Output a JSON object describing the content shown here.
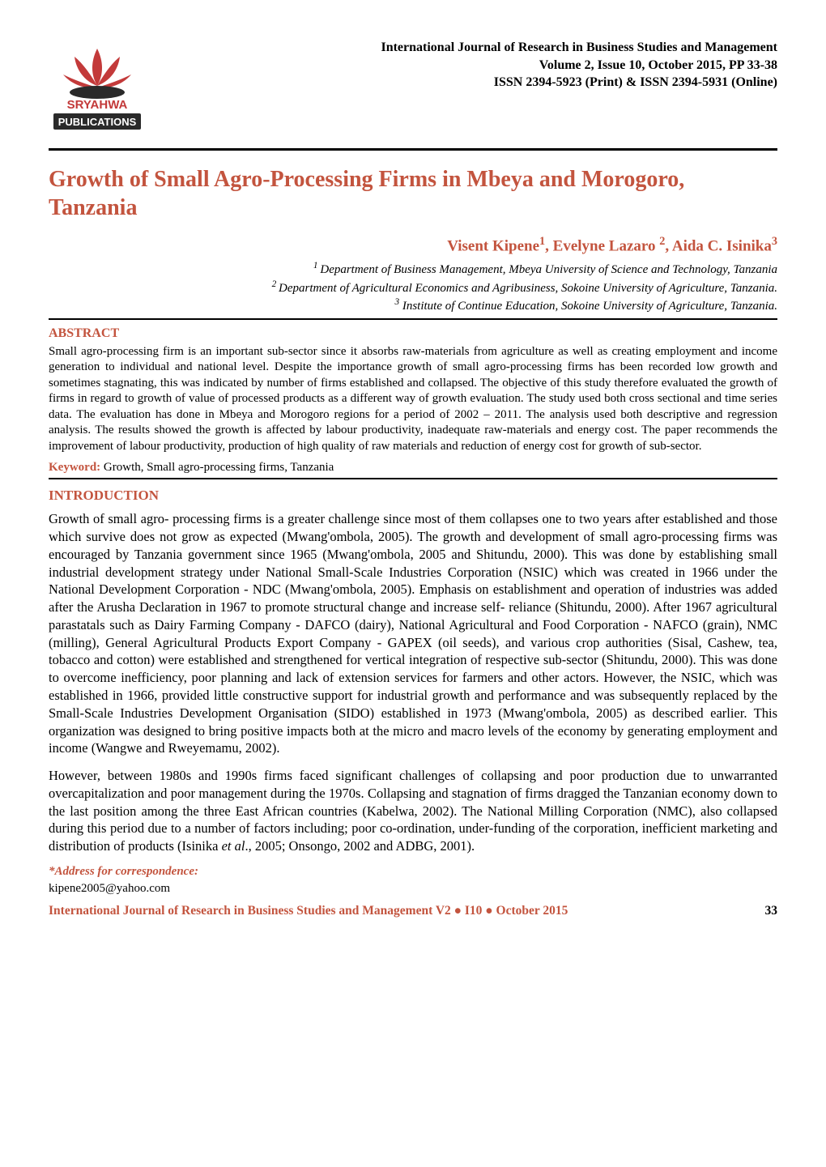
{
  "colors": {
    "accent": "#c3543e",
    "logo_red": "#c33a3a",
    "logo_dark": "#2a2a2a",
    "text": "#000000",
    "bg": "#ffffff"
  },
  "header": {
    "journal_name": "International Journal of Research in Business Studies and Management",
    "volume_line": "Volume 2, Issue 10, October 2015, PP 33-38",
    "issn_line": "ISSN 2394-5923 (Print) & ISSN 2394-5931 (Online)",
    "logo": {
      "top_text": "SRYAHWA",
      "bottom_text": "PUBLICATIONS"
    }
  },
  "article": {
    "title": "Growth of Small Agro-Processing Firms in Mbeya and Morogoro, Tanzania",
    "authors_html": "Visent Kipene<sup>1</sup>, Evelyne Lazaro <sup>2</sup>, Aida C. Isinika<sup>3</sup>",
    "affiliations": [
      "<sup>1 </sup>Department of Business Management, Mbeya University of Science and Technology, Tanzania",
      "<sup>2 </sup>Department of Agricultural Economics and Agribusiness, Sokoine University of Agriculture, Tanzania.",
      "<sup>3</sup>  Institute of Continue Education, Sokoine University of Agriculture, Tanzania."
    ]
  },
  "abstract": {
    "label": "ABSTRACT",
    "text": "Small agro-processing firm is an important sub-sector since it absorbs raw-materials from agriculture as well as creating employment and income generation to individual and national level. Despite the importance growth of small agro-processing firms has been recorded low growth and sometimes stagnating, this was indicated by number of firms established and collapsed. The objective of this study therefore evaluated the growth of firms in regard to growth of value of processed products as a different way of growth evaluation. The study used both cross sectional and time series data. The evaluation has done in Mbeya and Morogoro regions for a period of 2002 – 2011. The analysis used both descriptive and regression analysis. The results showed the growth is affected by labour productivity, inadequate raw-materials and energy cost. The paper recommends the improvement of labour productivity, production of high quality of raw materials and reduction of energy cost for growth of sub-sector."
  },
  "keywords": {
    "label": "Keyword:",
    "text": " Growth, Small agro-processing firms, Tanzania"
  },
  "introduction": {
    "label": "INTRODUCTION",
    "paragraphs": [
      "Growth of small agro- processing firms is a greater challenge since most of them collapses one to two years after established and those which survive does not grow as expected (Mwang'ombola, 2005). The growth and development of small agro-processing firms was encouraged by Tanzania government since 1965 (Mwang'ombola, 2005 and Shitundu, 2000). This was done by establishing small industrial development strategy under National Small-Scale Industries Corporation (NSIC) which was created in 1966 under the National Development Corporation - NDC (Mwang'ombola, 2005). Emphasis on establishment and operation of industries was added after the Arusha Declaration in 1967 to promote structural change and increase self- reliance (Shitundu, 2000). After 1967 agricultural parastatals such as Dairy Farming Company - DAFCO (dairy), National Agricultural and Food Corporation - NAFCO (grain), NMC (milling), General Agricultural Products Export Company - GAPEX (oil seeds), and various crop authorities (Sisal, Cashew, tea, tobacco and cotton) were established and strengthened for vertical integration of respective sub-sector (Shitundu, 2000).  This was done to overcome inefficiency, poor planning and lack of extension services for farmers and other actors. However, the NSIC, which was established in 1966, provided little constructive support for industrial growth and performance and was subsequently replaced by the Small-Scale Industries Development Organisation (SIDO) established in 1973 (Mwang'ombola, 2005) as described earlier. This organization was designed to bring positive impacts both at the micro and macro levels of the economy by generating employment and income (Wangwe and Rweyemamu, 2002).",
      "However, between 1980s and 1990s firms faced significant challenges of collapsing and poor production due to unwarranted overcapitalization and poor management during the 1970s.  Collapsing and stagnation of firms dragged the Tanzanian economy down to the last position among the three East African countries (Kabelwa, 2002). The National Milling Corporation (NMC), also collapsed during this period due to a number of factors including; poor co-ordination, under-funding of the corporation, inefficient marketing and distribution of products (Isinika et al., 2005; Onsongo, 2002 and ADBG, 2001)."
    ]
  },
  "correspondence": {
    "label": "*Address for correspondence:",
    "email": "kipene2005@yahoo.com"
  },
  "footer": {
    "text": "International Journal of Research in Business Studies and Management V2 ● I10 ● October 2015",
    "page": "33"
  }
}
